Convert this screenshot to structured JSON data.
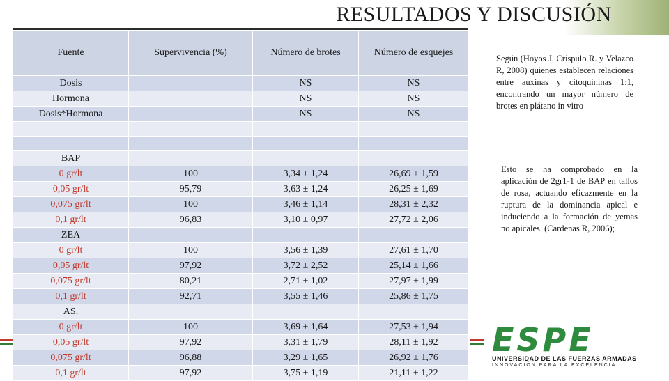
{
  "slide": {
    "title": "RESULTADOS Y DISCUSIÓN"
  },
  "table": {
    "headers": [
      "Fuente",
      "Supervivencia (%)",
      "Número de brotes",
      "Número de esquejes"
    ],
    "anova_sources": [
      "Dosis",
      "Hormona",
      "Dosis*Hormona"
    ],
    "anova_brotes": [
      "NS",
      "NS",
      "NS"
    ],
    "anova_esquejes": [
      "NS",
      "NS",
      "NS"
    ],
    "groups": [
      {
        "label": "BAP",
        "rows": [
          [
            "0 gr/lt",
            "100",
            "3,34 ± 1,24",
            "26,69 ± 1,59"
          ],
          [
            "0,05 gr/lt",
            "95,79",
            "3,63 ± 1,24",
            "26,25 ± 1,69"
          ],
          [
            "0,075 gr/lt",
            "100",
            "3,46 ± 1,14",
            "28,31 ± 2,32"
          ],
          [
            "0,1 gr/lt",
            "96,83",
            "3,10 ± 0,97",
            "27,72 ± 2,06"
          ]
        ]
      },
      {
        "label": "ZEA",
        "rows": [
          [
            "0 gr/lt",
            "100",
            "3,56 ± 1,39",
            "27,61 ± 1,70"
          ],
          [
            "0,05 gr/lt",
            "97,92",
            "3,72 ± 2,52",
            "25,14 ± 1,66"
          ],
          [
            "0,075 gr/lt",
            "80,21",
            "2,71 ± 1,02",
            "27,97 ± 1,99"
          ],
          [
            "0,1 gr/lt",
            "92,71",
            "3,55 ± 1,46",
            "25,86 ± 1,75"
          ]
        ]
      },
      {
        "label": "AS.",
        "rows": [
          [
            "0 gr/lt",
            "100",
            "3,69 ± 1,64",
            "27,53 ± 1,94"
          ],
          [
            "0,05 gr/lt",
            "97,92",
            "3,31 ± 1,79",
            "28,11 ± 1,92"
          ],
          [
            "0,075 gr/lt",
            "96,88",
            "3,29 ± 1,65",
            "26,92 ± 1,76"
          ],
          [
            "0,1 gr/lt",
            "97,92",
            "3,75 ± 1,19",
            "21,11 ± 1,22"
          ]
        ]
      }
    ]
  },
  "notes": {
    "note1": "Según (Hoyos J. Crispulo R. y Velazco R, 2008) quienes establecen relaciones entre auxinas y citoquininas 1:1, encontrando un mayor número de brotes en plátano in vitro",
    "note2": "Esto se ha comprobado en la aplicación de 2gr1-1 de BAP en tallos de rosa, actuando eficazmente en la ruptura de la dominancia apical e induciendo a la formación de yemas no apicales. (Cardenas R, 2006);"
  },
  "logo": {
    "wordmark": "ESPE",
    "line1": "UNIVERSIDAD DE LAS FUERZAS ARMADAS",
    "line2": "INNOVACIÓN PARA LA EXCELENCIA"
  },
  "colors": {
    "dose_text": "#c0392b",
    "header_fill": "#cdd4e4",
    "row_light": "#e8ebf3",
    "row_dark": "#d0d7e8",
    "brand_green": "#2e8b3e"
  }
}
